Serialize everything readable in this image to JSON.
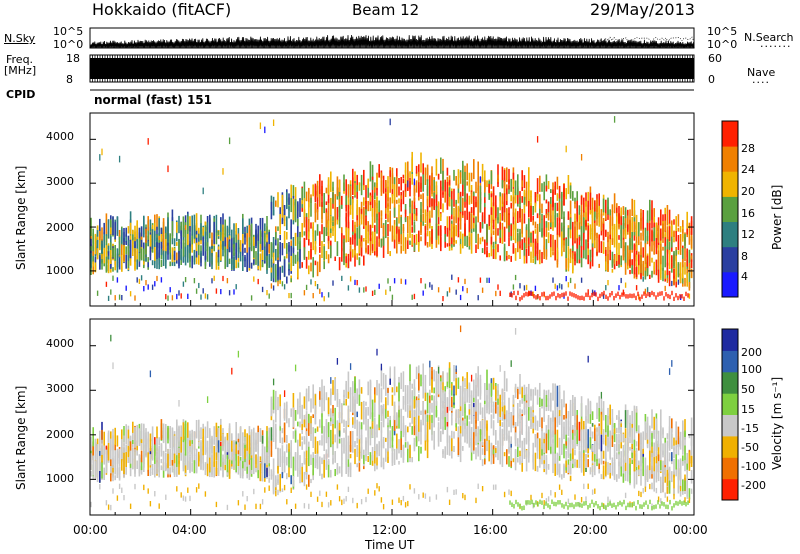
{
  "header": {
    "site": "Hokkaido (fitACF)",
    "beam": "Beam 12",
    "date": "29/May/2013"
  },
  "panels": {
    "nsky_label": "N.Sky",
    "nsky_ticks": [
      "10^5",
      "10^0"
    ],
    "nsearch_label": "N.Search",
    "nsearch_ticks": [
      "10^5",
      "10^0"
    ],
    "freq_label_1": "Freq.",
    "freq_label_2": "[MHz]",
    "freq_ticks": [
      "18",
      "8"
    ],
    "nave_label": "Nave",
    "nave_ticks": [
      "60",
      "0"
    ],
    "cpid_label": "CPID",
    "cpid_text": "normal (fast) 151"
  },
  "chart_data": [
    {
      "type": "heatmap",
      "name": "power",
      "ylabel": "Slant Range [km]",
      "yticks": [
        "1000",
        "2000",
        "3000",
        "4000"
      ],
      "ylim": [
        200,
        4600
      ],
      "colorbar_label": "Power [dB]",
      "colorbar_ticks": [
        "4",
        "8",
        "12",
        "16",
        "20",
        "24",
        "28"
      ],
      "colorbar_colors": [
        "#1a1aff",
        "#2a3fa0",
        "#2e7f80",
        "#5aa040",
        "#f0b400",
        "#f08000",
        "#ff2000"
      ]
    },
    {
      "type": "heatmap",
      "name": "velocity",
      "ylabel": "Slant Range [km]",
      "yticks": [
        "1000",
        "2000",
        "3000",
        "4000"
      ],
      "ylim": [
        200,
        4600
      ],
      "colorbar_label": "Velocity [m s⁻¹]",
      "colorbar_ticks": [
        "200",
        "100",
        "50",
        "15",
        "-15",
        "-50",
        "-100",
        "-200"
      ],
      "colorbar_colors": [
        "#1f2aa0",
        "#2e60b0",
        "#3f8f3f",
        "#7ed040",
        "#c8c8c8",
        "#f0b000",
        "#f07000",
        "#ff2000"
      ]
    }
  ],
  "xaxis": {
    "ticks": [
      "00:00",
      "04:00",
      "08:00",
      "12:00",
      "16:00",
      "20:00",
      "00:00"
    ],
    "label": "Time UT"
  }
}
